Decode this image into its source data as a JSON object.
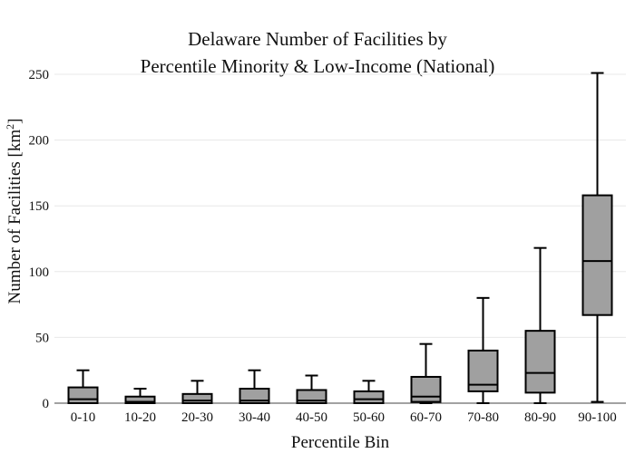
{
  "chart_data": {
    "type": "box",
    "title_line1": "Delaware Number of Facilities by",
    "title_line2": "Percentile Minority & Low-Income (National)",
    "xlabel": "Percentile Bin",
    "ylabel_main": "Number of Facilities  [km",
    "ylabel_sup": "2",
    "ylabel_end": "]",
    "ylim": [
      0,
      260
    ],
    "yticks": [
      0,
      50,
      100,
      150,
      200,
      250
    ],
    "grid": true,
    "box_color": "#a0a0a0",
    "categories": [
      "0-10",
      "10-20",
      "20-30",
      "30-40",
      "40-50",
      "50-60",
      "60-70",
      "70-80",
      "80-90",
      "90-100"
    ],
    "boxes": [
      {
        "min": 0,
        "q1": 0,
        "median": 3,
        "q3": 12,
        "max": 25
      },
      {
        "min": 0,
        "q1": 0,
        "median": 1,
        "q3": 5,
        "max": 11
      },
      {
        "min": 0,
        "q1": 0,
        "median": 2,
        "q3": 7,
        "max": 17
      },
      {
        "min": 0,
        "q1": 0,
        "median": 2,
        "q3": 11,
        "max": 25
      },
      {
        "min": 0,
        "q1": 0,
        "median": 2,
        "q3": 10,
        "max": 21
      },
      {
        "min": 0,
        "q1": 0,
        "median": 3,
        "q3": 9,
        "max": 17
      },
      {
        "min": 0,
        "q1": 1,
        "median": 5,
        "q3": 20,
        "max": 45
      },
      {
        "min": 0,
        "q1": 9,
        "median": 14,
        "q3": 40,
        "max": 80
      },
      {
        "min": 0,
        "q1": 8,
        "median": 23,
        "q3": 55,
        "max": 118
      },
      {
        "min": 1,
        "q1": 67,
        "median": 108,
        "q3": 158,
        "max": 251
      }
    ]
  }
}
